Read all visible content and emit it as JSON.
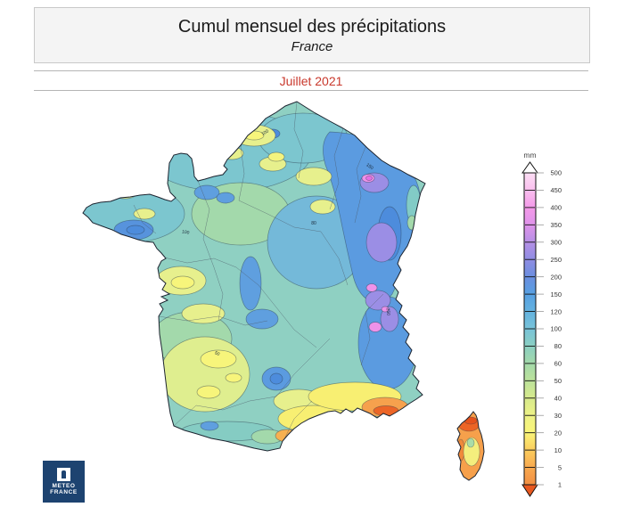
{
  "header": {
    "title": "Cumul mensuel des précipitations",
    "subtitle": "France"
  },
  "period": {
    "label": "Juillet 2021",
    "color": "#c9382c"
  },
  "legend": {
    "unit": "mm",
    "ticks": [
      {
        "value": "500",
        "color": "#fcdef4"
      },
      {
        "value": "450",
        "color": "#f9bfee"
      },
      {
        "value": "400",
        "color": "#f49ae9"
      },
      {
        "value": "350",
        "color": "#df93ea"
      },
      {
        "value": "300",
        "color": "#b690e6"
      },
      {
        "value": "250",
        "color": "#8f8de3"
      },
      {
        "value": "200",
        "color": "#6b8edf"
      },
      {
        "value": "150",
        "color": "#57a0e2"
      },
      {
        "value": "120",
        "color": "#64b2df"
      },
      {
        "value": "100",
        "color": "#78c3d9"
      },
      {
        "value": "80",
        "color": "#8bcfc2"
      },
      {
        "value": "60",
        "color": "#a3d9aa"
      },
      {
        "value": "50",
        "color": "#bce29b"
      },
      {
        "value": "40",
        "color": "#d7ea8c"
      },
      {
        "value": "30",
        "color": "#edf286"
      },
      {
        "value": "20",
        "color": "#f9f478"
      },
      {
        "value": "10",
        "color": "#fbcd5e"
      },
      {
        "value": "5",
        "color": "#f8a94f"
      },
      {
        "value": "1",
        "color": "#f28f43"
      }
    ],
    "arrow_top_color": "#ffffff",
    "arrow_bottom_color": "#e8581f"
  },
  "map": {
    "contour_labels": [
      "100",
      "150",
      "250",
      "100",
      "50",
      "80"
    ]
  },
  "logo": {
    "line1": "METEO",
    "line2": "FRANCE",
    "bg": "#1d4370"
  }
}
